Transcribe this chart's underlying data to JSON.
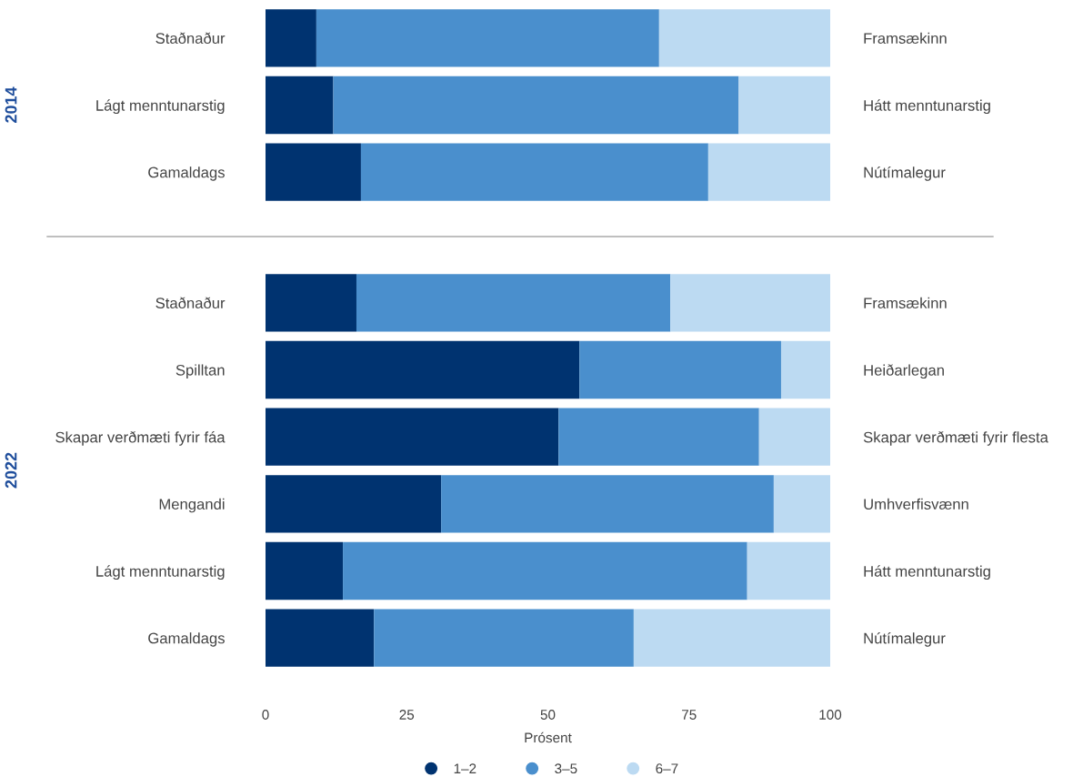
{
  "chart_data": [
    {
      "type": "bar",
      "orientation": "horizontal",
      "stacked": true,
      "ylabel": "2014",
      "categories": [
        "Staðnaður",
        "Lágt menntunarstig",
        "Gamaldags"
      ],
      "y2_categories": [
        "Framsækinn",
        "Hátt menntunarstig",
        "Nútímalegur"
      ],
      "xlim": [
        0,
        100
      ],
      "xticks": [
        0,
        25,
        50,
        75,
        100
      ],
      "tick_labels": "y",
      "grid": false,
      "legend": false,
      "series": [
        {
          "color": "#003370",
          "values": [
            9.0,
            12.0,
            16.9
          ]
        },
        {
          "color": "#4a8fcd",
          "values": [
            60.7,
            71.8,
            61.5
          ]
        },
        {
          "color": "#bcdaf2",
          "values": [
            30.3,
            16.2,
            21.6
          ]
        }
      ]
    },
    {
      "type": "bar",
      "orientation": "horizontal",
      "stacked": true,
      "ylabel": "2022",
      "xlabel": "Prósent",
      "categories": [
        "Staðnaður",
        "Spilltan",
        "Skapar verðmæti fyrir fáa",
        "Mengandi",
        "Lágt menntunarstig",
        "Gamaldags"
      ],
      "y2_categories": [
        "Framsækinn",
        "Heiðarlegan",
        "Skapar verðmæti fyrir flesta",
        "Umhverfisvænn",
        "Hátt menntunarstig",
        "Nútímalegur"
      ],
      "xlim": [
        0,
        100
      ],
      "xticks": [
        0,
        25,
        50,
        75,
        100
      ],
      "grid": false,
      "legend": "bottom",
      "series": [
        {
          "name": "1–2",
          "color": "#003370",
          "values": [
            16.1,
            55.6,
            51.9,
            31.1,
            13.7,
            19.2
          ]
        },
        {
          "name": "3–5",
          "color": "#4a8fcd",
          "values": [
            55.6,
            35.7,
            35.5,
            58.9,
            71.6,
            46.0
          ]
        },
        {
          "name": "6–7",
          "color": "#bcdaf2",
          "values": [
            28.3,
            8.7,
            12.6,
            10.0,
            14.7,
            34.8
          ]
        }
      ]
    }
  ]
}
